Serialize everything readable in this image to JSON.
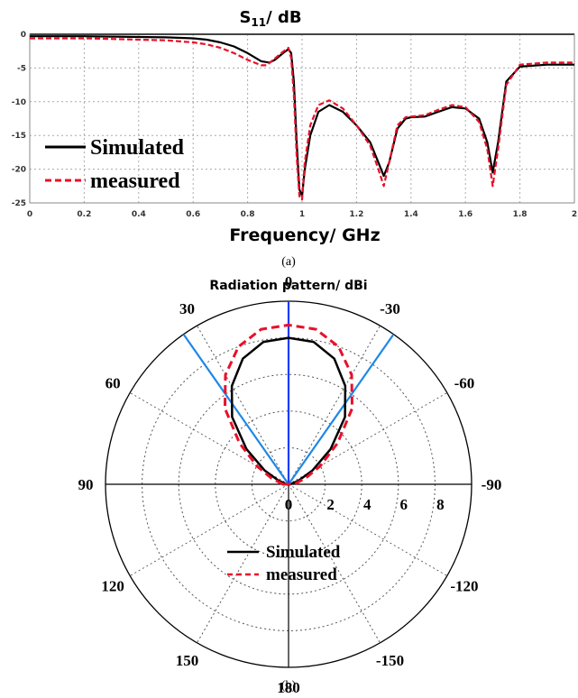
{
  "chart_data": [
    {
      "type": "line",
      "title": "S",
      "title_sub": "11",
      "title_suffix": "/ dB",
      "xlabel": "Frequency/ GHz",
      "ylabel": "",
      "xlim": [
        0,
        2
      ],
      "ylim": [
        -25,
        0
      ],
      "xticks": [
        "0",
        "0.2",
        "0.4",
        "0.6",
        "0.8",
        "1",
        "1.2",
        "1.4",
        "1.6",
        "1.8",
        "2"
      ],
      "yticks": [
        "0",
        "-5",
        "-10",
        "-15",
        "-20",
        "-25"
      ],
      "grid": true,
      "legend_position": "bottom-left",
      "caption": "(a)",
      "series": [
        {
          "name": "Simulated",
          "color": "#000000",
          "dash": "solid",
          "x": [
            0,
            0.1,
            0.2,
            0.3,
            0.4,
            0.5,
            0.6,
            0.65,
            0.7,
            0.75,
            0.8,
            0.85,
            0.88,
            0.9,
            0.93,
            0.95,
            0.96,
            0.97,
            0.98,
            0.99,
            1.0,
            1.01,
            1.03,
            1.06,
            1.1,
            1.15,
            1.2,
            1.25,
            1.28,
            1.3,
            1.32,
            1.35,
            1.38,
            1.4,
            1.45,
            1.5,
            1.55,
            1.6,
            1.65,
            1.68,
            1.7,
            1.72,
            1.75,
            1.8,
            1.9,
            2.0
          ],
          "y": [
            -0.3,
            -0.3,
            -0.3,
            -0.35,
            -0.4,
            -0.45,
            -0.6,
            -0.8,
            -1.2,
            -1.8,
            -2.8,
            -4.0,
            -4.2,
            -3.8,
            -2.8,
            -2.2,
            -2.8,
            -7,
            -16,
            -23,
            -24,
            -20,
            -15,
            -11.5,
            -10.5,
            -11.5,
            -13.5,
            -16,
            -19,
            -21,
            -19,
            -14,
            -12.5,
            -12.3,
            -12.2,
            -11.5,
            -10.8,
            -11,
            -12.5,
            -16,
            -20.5,
            -16,
            -7,
            -4.8,
            -4.5,
            -4.5
          ]
        },
        {
          "name": "measured",
          "color": "#e8102a",
          "dash": "dashed",
          "x": [
            0,
            0.1,
            0.2,
            0.3,
            0.4,
            0.5,
            0.6,
            0.65,
            0.7,
            0.75,
            0.8,
            0.85,
            0.87,
            0.9,
            0.93,
            0.95,
            0.96,
            0.97,
            0.98,
            0.99,
            1.0,
            1.01,
            1.03,
            1.06,
            1.1,
            1.15,
            1.2,
            1.25,
            1.28,
            1.3,
            1.32,
            1.35,
            1.38,
            1.4,
            1.45,
            1.5,
            1.55,
            1.6,
            1.65,
            1.68,
            1.7,
            1.72,
            1.75,
            1.8,
            1.9,
            2.0
          ],
          "y": [
            -0.6,
            -0.6,
            -0.6,
            -0.7,
            -0.8,
            -0.9,
            -1.2,
            -1.5,
            -2.0,
            -2.8,
            -3.8,
            -4.6,
            -4.6,
            -3.6,
            -2.6,
            -2.0,
            -3.5,
            -9,
            -18,
            -24,
            -24.5,
            -19,
            -13.5,
            -10.5,
            -9.8,
            -11,
            -13.5,
            -16.5,
            -20,
            -22.5,
            -19,
            -13.5,
            -12.3,
            -12.2,
            -12,
            -11.2,
            -10.5,
            -10.8,
            -13,
            -17,
            -22.5,
            -17,
            -7.5,
            -4.5,
            -4.2,
            -4.2
          ]
        }
      ]
    },
    {
      "type": "polar",
      "title": "Radiation pattern/ dBi",
      "radial_ticks": [
        "0",
        "2",
        "4",
        "6",
        "8"
      ],
      "rlim": [
        0,
        10
      ],
      "angle_labels": [
        {
          "deg": 0,
          "label": "0"
        },
        {
          "deg": -30,
          "label": "30"
        },
        {
          "deg": 30,
          "label": "-30"
        },
        {
          "deg": -60,
          "label": "60"
        },
        {
          "deg": 60,
          "label": "-60"
        },
        {
          "deg": -90,
          "label": "90"
        },
        {
          "deg": 90,
          "label": "-90"
        },
        {
          "deg": -120,
          "label": "120"
        },
        {
          "deg": 120,
          "label": "-120"
        },
        {
          "deg": -150,
          "label": "150"
        },
        {
          "deg": 150,
          "label": "-150"
        },
        {
          "deg": 180,
          "label": "180"
        }
      ],
      "beam_lines": [
        {
          "deg": -35,
          "r": 10,
          "color": "#1e88e5"
        },
        {
          "deg": 35,
          "r": 10,
          "color": "#1e88e5"
        },
        {
          "deg": 0,
          "r": 10,
          "color": "#1a3cff"
        }
      ],
      "legend_position": "bottom",
      "caption": "(b)",
      "series": [
        {
          "name": "Simulated",
          "color": "#000000",
          "dash": "solid",
          "theta": [
            -90,
            -70,
            -60,
            -50,
            -40,
            -30,
            -20,
            -10,
            0,
            10,
            20,
            30,
            40,
            50,
            60,
            70,
            90
          ],
          "r": [
            0.1,
            0.6,
            1.5,
            3.0,
            4.8,
            6.2,
            7.3,
            7.9,
            8.0,
            7.9,
            7.3,
            6.2,
            4.8,
            3.0,
            1.5,
            0.6,
            0.1
          ]
        },
        {
          "name": "measured",
          "color": "#e8102a",
          "dash": "dashed",
          "theta": [
            -90,
            -70,
            -60,
            -50,
            -40,
            -30,
            -20,
            -10,
            0,
            10,
            20,
            30,
            40,
            50,
            60,
            70,
            90
          ],
          "r": [
            0.3,
            1.0,
            2.0,
            3.5,
            5.4,
            6.9,
            8.0,
            8.6,
            8.7,
            8.6,
            8.0,
            6.9,
            5.4,
            3.5,
            2.0,
            1.0,
            0.3
          ]
        }
      ]
    }
  ]
}
